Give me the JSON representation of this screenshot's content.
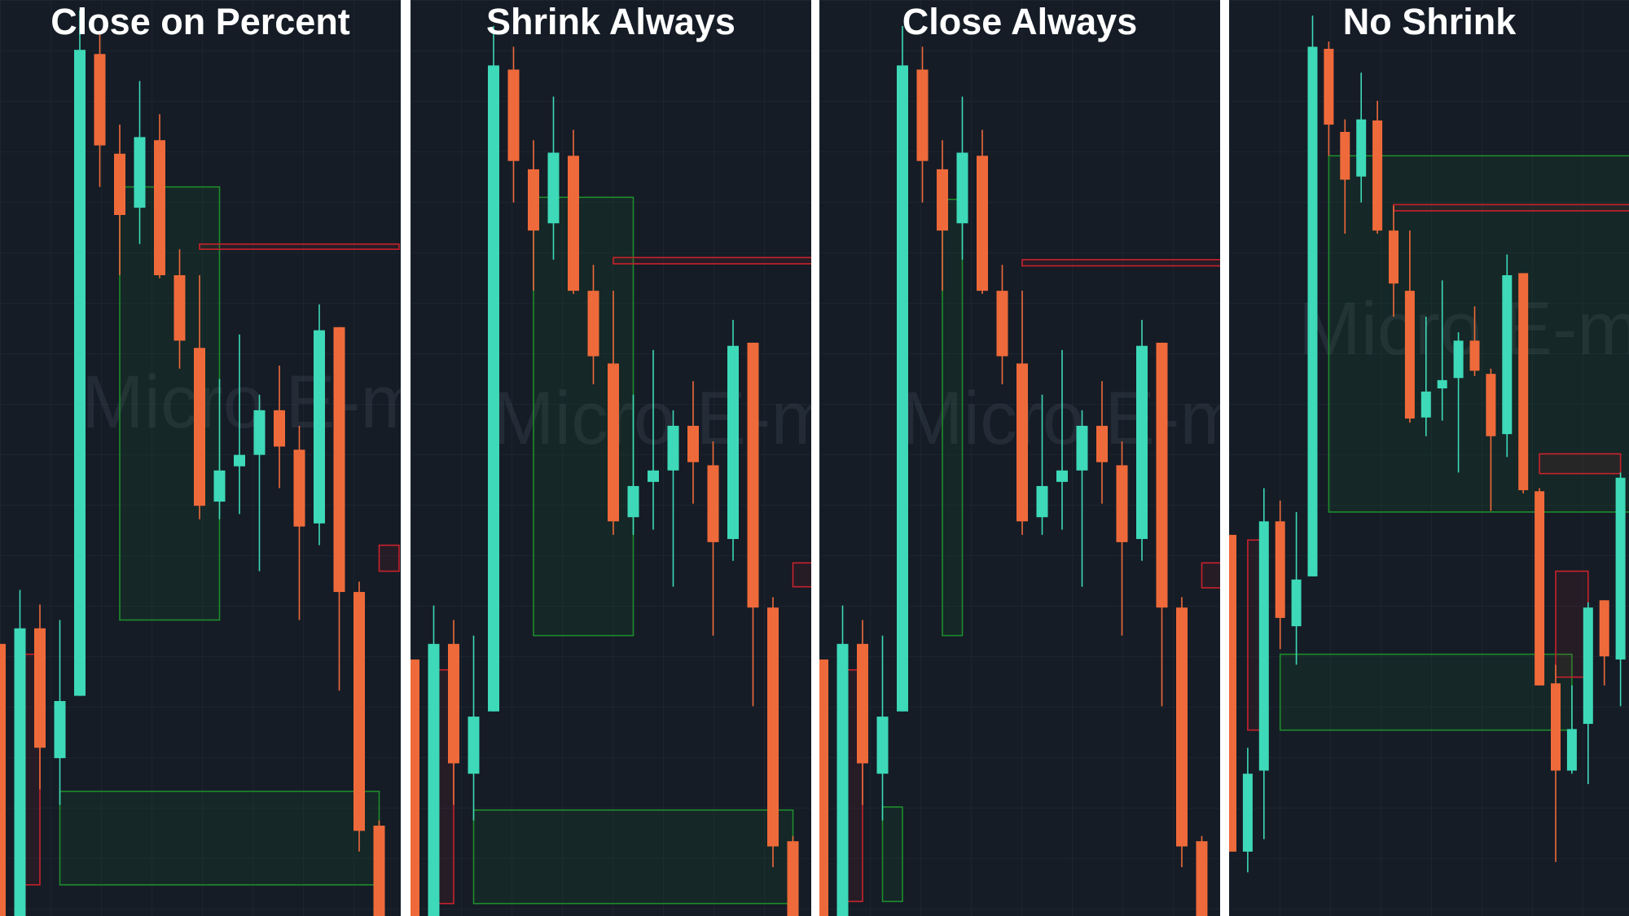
{
  "chart_data": [
    {
      "type": "candlestick",
      "title": "Close on Percent",
      "watermark": "Micro E-mini",
      "ylim": [
        0,
        882
      ],
      "up_color": "#3dd9b8",
      "down_color": "#ef6a3a",
      "open": [
        262,
        0,
        277,
        152,
        212,
        830,
        734,
        682,
        747,
        617,
        547,
        399,
        433,
        444,
        487,
        449,
        378,
        567,
        312,
        87
      ],
      "high": [
        262,
        314,
        300,
        285,
        872,
        852,
        762,
        804,
        772,
        642,
        617,
        517,
        560,
        502,
        530,
        472,
        589,
        567,
        322,
        92
      ],
      "low": [
        0,
        0,
        122,
        107,
        212,
        702,
        617,
        647,
        614,
        527,
        382,
        382,
        387,
        332,
        412,
        285,
        357,
        217,
        62,
        0
      ],
      "close": [
        0,
        277,
        162,
        207,
        834,
        742,
        675,
        750,
        617,
        554,
        395,
        429,
        444,
        487,
        452,
        375,
        564,
        312,
        82,
        0
      ],
      "boxes": [
        {
          "x0": 6,
          "x1": 11,
          "top": 702,
          "bottom": 285,
          "color": "#1e8c2c"
        },
        {
          "x0": 3,
          "x1": 19,
          "top": 120,
          "bottom": 30,
          "color": "#1e8c2c"
        },
        {
          "x0": 1,
          "x1": 2,
          "top": 252,
          "bottom": 30,
          "color": "#c8222c"
        },
        {
          "x0": 10,
          "x1": 20,
          "top": 647,
          "bottom": 642,
          "color": "#c8222c"
        },
        {
          "x0": 19,
          "x1": 20,
          "top": 357,
          "bottom": 332,
          "color": "#c8222c"
        }
      ]
    },
    {
      "type": "candlestick",
      "title": "Shrink Always",
      "watermark": "Micro E-mini",
      "ylim": [
        0,
        882
      ],
      "up_color": "#3dd9b8",
      "down_color": "#ef6a3a",
      "open": [
        247,
        0,
        262,
        137,
        197,
        815,
        719,
        667,
        732,
        602,
        532,
        384,
        418,
        429,
        472,
        434,
        363,
        552,
        297,
        72
      ],
      "high": [
        247,
        299,
        285,
        270,
        857,
        837,
        747,
        789,
        757,
        627,
        602,
        502,
        545,
        487,
        515,
        457,
        574,
        552,
        307,
        77
      ],
      "low": [
        0,
        0,
        107,
        92,
        197,
        687,
        602,
        632,
        599,
        512,
        367,
        367,
        372,
        317,
        397,
        270,
        342,
        202,
        47,
        0
      ],
      "close": [
        0,
        262,
        147,
        192,
        819,
        727,
        660,
        735,
        602,
        539,
        380,
        414,
        429,
        472,
        437,
        360,
        549,
        297,
        67,
        0
      ],
      "boxes": [
        {
          "x0": 6,
          "x1": 11,
          "top": 692,
          "bottom": 270,
          "color": "#1e8c2c"
        },
        {
          "x0": 3,
          "x1": 19,
          "top": 102,
          "bottom": 12,
          "color": "#1e8c2c"
        },
        {
          "x0": 1,
          "x1": 2,
          "top": 237,
          "bottom": 12,
          "color": "#c8222c"
        },
        {
          "x0": 10,
          "x1": 20,
          "top": 634,
          "bottom": 628,
          "color": "#c8222c"
        },
        {
          "x0": 19,
          "x1": 20,
          "top": 340,
          "bottom": 317,
          "color": "#c8222c"
        }
      ]
    },
    {
      "type": "candlestick",
      "title": "Close Always",
      "watermark": "Micro E-mini",
      "ylim": [
        0,
        882
      ],
      "up_color": "#3dd9b8",
      "down_color": "#ef6a3a",
      "open": [
        247,
        0,
        262,
        137,
        197,
        815,
        719,
        667,
        732,
        602,
        532,
        384,
        418,
        429,
        472,
        434,
        363,
        552,
        297,
        72
      ],
      "high": [
        247,
        299,
        285,
        270,
        857,
        837,
        747,
        789,
        757,
        627,
        602,
        502,
        545,
        487,
        515,
        457,
        574,
        552,
        307,
        77
      ],
      "low": [
        0,
        0,
        107,
        92,
        197,
        687,
        602,
        632,
        599,
        512,
        367,
        367,
        372,
        317,
        397,
        270,
        342,
        202,
        47,
        0
      ],
      "close": [
        0,
        262,
        147,
        192,
        819,
        727,
        660,
        735,
        602,
        539,
        380,
        414,
        429,
        472,
        437,
        360,
        549,
        297,
        67,
        0
      ],
      "boxes": [
        {
          "x0": 6,
          "x1": 7,
          "top": 690,
          "bottom": 270,
          "color": "#1e8c2c"
        },
        {
          "x0": 3,
          "x1": 4,
          "top": 105,
          "bottom": 14,
          "color": "#1e8c2c"
        },
        {
          "x0": 1,
          "x1": 2,
          "top": 237,
          "bottom": 14,
          "color": "#c8222c"
        },
        {
          "x0": 10,
          "x1": 20,
          "top": 632,
          "bottom": 626,
          "color": "#c8222c"
        },
        {
          "x0": 19,
          "x1": 20,
          "top": 340,
          "bottom": 316,
          "color": "#c8222c"
        }
      ]
    },
    {
      "type": "candlestick",
      "title": "No Shrink",
      "watermark": "Micro E-mini",
      "ylim": [
        0,
        882
      ],
      "up_color": "#3dd9b8",
      "down_color": "#ef6a3a",
      "open": [
        367,
        62,
        140,
        380,
        279,
        327,
        835,
        755,
        712,
        766,
        660,
        602,
        480,
        508,
        518,
        554,
        522,
        464,
        619,
        409,
        224,
        140,
        185,
        304,
        247
      ],
      "high": [
        367,
        162,
        412,
        400,
        389,
        867,
        842,
        767,
        812,
        785,
        684,
        660,
        577,
        612,
        562,
        587,
        527,
        637,
        619,
        412,
        242,
        222,
        302,
        304,
        427
      ],
      "low": [
        62,
        42,
        74,
        257,
        242,
        327,
        732,
        657,
        687,
        657,
        577,
        475,
        462,
        477,
        427,
        520,
        390,
        442,
        407,
        222,
        52,
        137,
        127,
        222,
        202
      ],
      "close": [
        62,
        137,
        380,
        287,
        324,
        837,
        762,
        709,
        767,
        660,
        609,
        479,
        505,
        516,
        554,
        525,
        462,
        617,
        410,
        222,
        140,
        180,
        297,
        250,
        422
      ],
      "boxes": [
        {
          "x0": 6,
          "x1": 25,
          "top": 732,
          "bottom": 389,
          "color": "#1e8c2c"
        },
        {
          "x0": 10,
          "x1": 25,
          "top": 685,
          "bottom": 679,
          "color": "#c8222c"
        },
        {
          "x0": 19,
          "x1": 24,
          "top": 445,
          "bottom": 426,
          "color": "#c8222c"
        },
        {
          "x0": 3,
          "x1": 21,
          "top": 252,
          "bottom": 179,
          "color": "#1e8c2c"
        },
        {
          "x0": 1,
          "x1": 2,
          "top": 362,
          "bottom": 179,
          "color": "#c8222c"
        },
        {
          "x0": 20,
          "x1": 22,
          "top": 332,
          "bottom": 230,
          "color": "#c8222c"
        }
      ]
    }
  ]
}
